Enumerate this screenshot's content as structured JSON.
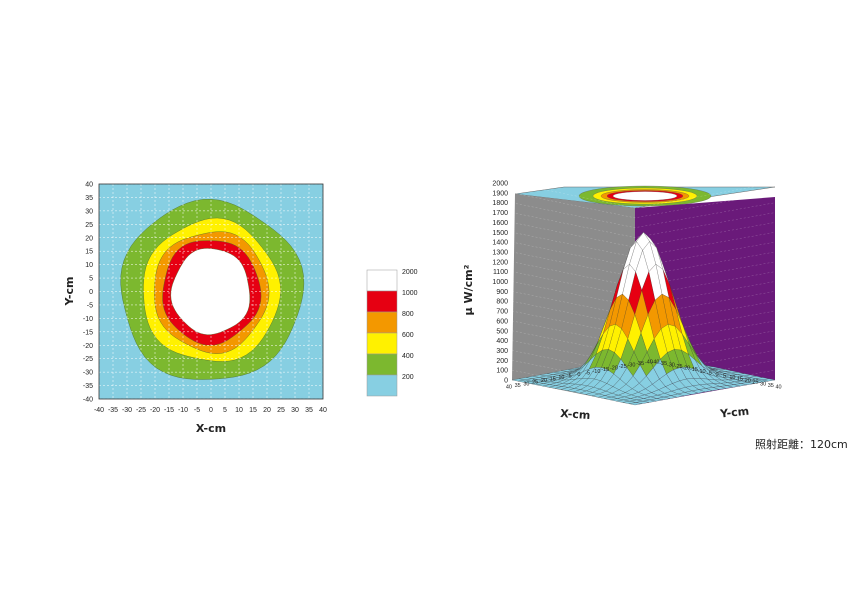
{
  "chart_data": [
    {
      "type": "heatmap",
      "xlabel": "X-cm",
      "ylabel": "Y-cm",
      "xlim": [
        -40,
        40
      ],
      "ylim": [
        -40,
        40
      ],
      "x_ticks": [
        -40,
        -35,
        -30,
        -25,
        -20,
        -15,
        -10,
        -5,
        0,
        5,
        10,
        15,
        20,
        25,
        30,
        35,
        40
      ],
      "y_ticks": [
        -40,
        -35,
        -30,
        -25,
        -20,
        -15,
        -10,
        -5,
        0,
        5,
        10,
        15,
        20,
        25,
        30,
        35,
        40
      ],
      "grid": true,
      "contour_radii_cm": {
        "above_200": [
          32.5,
          33.5
        ],
        "above_400": [
          24.5,
          26.5
        ],
        "above_600": [
          20.5,
          22.5
        ],
        "above_800": [
          17.5,
          19.5
        ],
        "above_1000": [
          14.0,
          16.0
        ]
      }
    },
    {
      "type": "surface",
      "xlabel": "X-cm",
      "ylabel": "Y-cm",
      "zlabel": "μ W/cm²",
      "xlim": [
        -40,
        40
      ],
      "ylim": [
        -40,
        40
      ],
      "zlim": [
        0,
        2000
      ],
      "z_ticks": [
        0,
        100,
        200,
        300,
        400,
        500,
        600,
        700,
        800,
        900,
        1000,
        1100,
        1200,
        1300,
        1400,
        1500,
        1600,
        1700,
        1800,
        1900,
        2000
      ],
      "x_ticks": [
        -40,
        -35,
        -30,
        -25,
        -20,
        -15,
        -10,
        -5,
        0,
        5,
        10,
        15,
        20,
        25,
        30,
        35,
        40
      ],
      "y_ticks": [
        -40,
        -35,
        -30,
        -25,
        -20,
        -15,
        -10,
        -5,
        0,
        5,
        10,
        15,
        20,
        25,
        30,
        35,
        40
      ],
      "peak_value": 1500
    }
  ],
  "legend": {
    "levels": [
      {
        "label": "2000",
        "color": "#ffffff"
      },
      {
        "label": "1000",
        "color": "#e60012"
      },
      {
        "label": "800",
        "color": "#f39800"
      },
      {
        "label": "600",
        "color": "#fff100"
      },
      {
        "label": "400",
        "color": "#7cb82f"
      },
      {
        "label": "200",
        "color": "#87cfe2"
      }
    ]
  },
  "colors": {
    "band_white": "#ffffff",
    "band_red": "#e60012",
    "band_orange": "#f39800",
    "band_yellow": "#fff100",
    "band_green": "#7cb82f",
    "band_lightblue": "#87cfe2",
    "wall_left": "#8c8c8c",
    "wall_right": "#6a1a7a"
  },
  "footnote": "照射距離：120cm"
}
